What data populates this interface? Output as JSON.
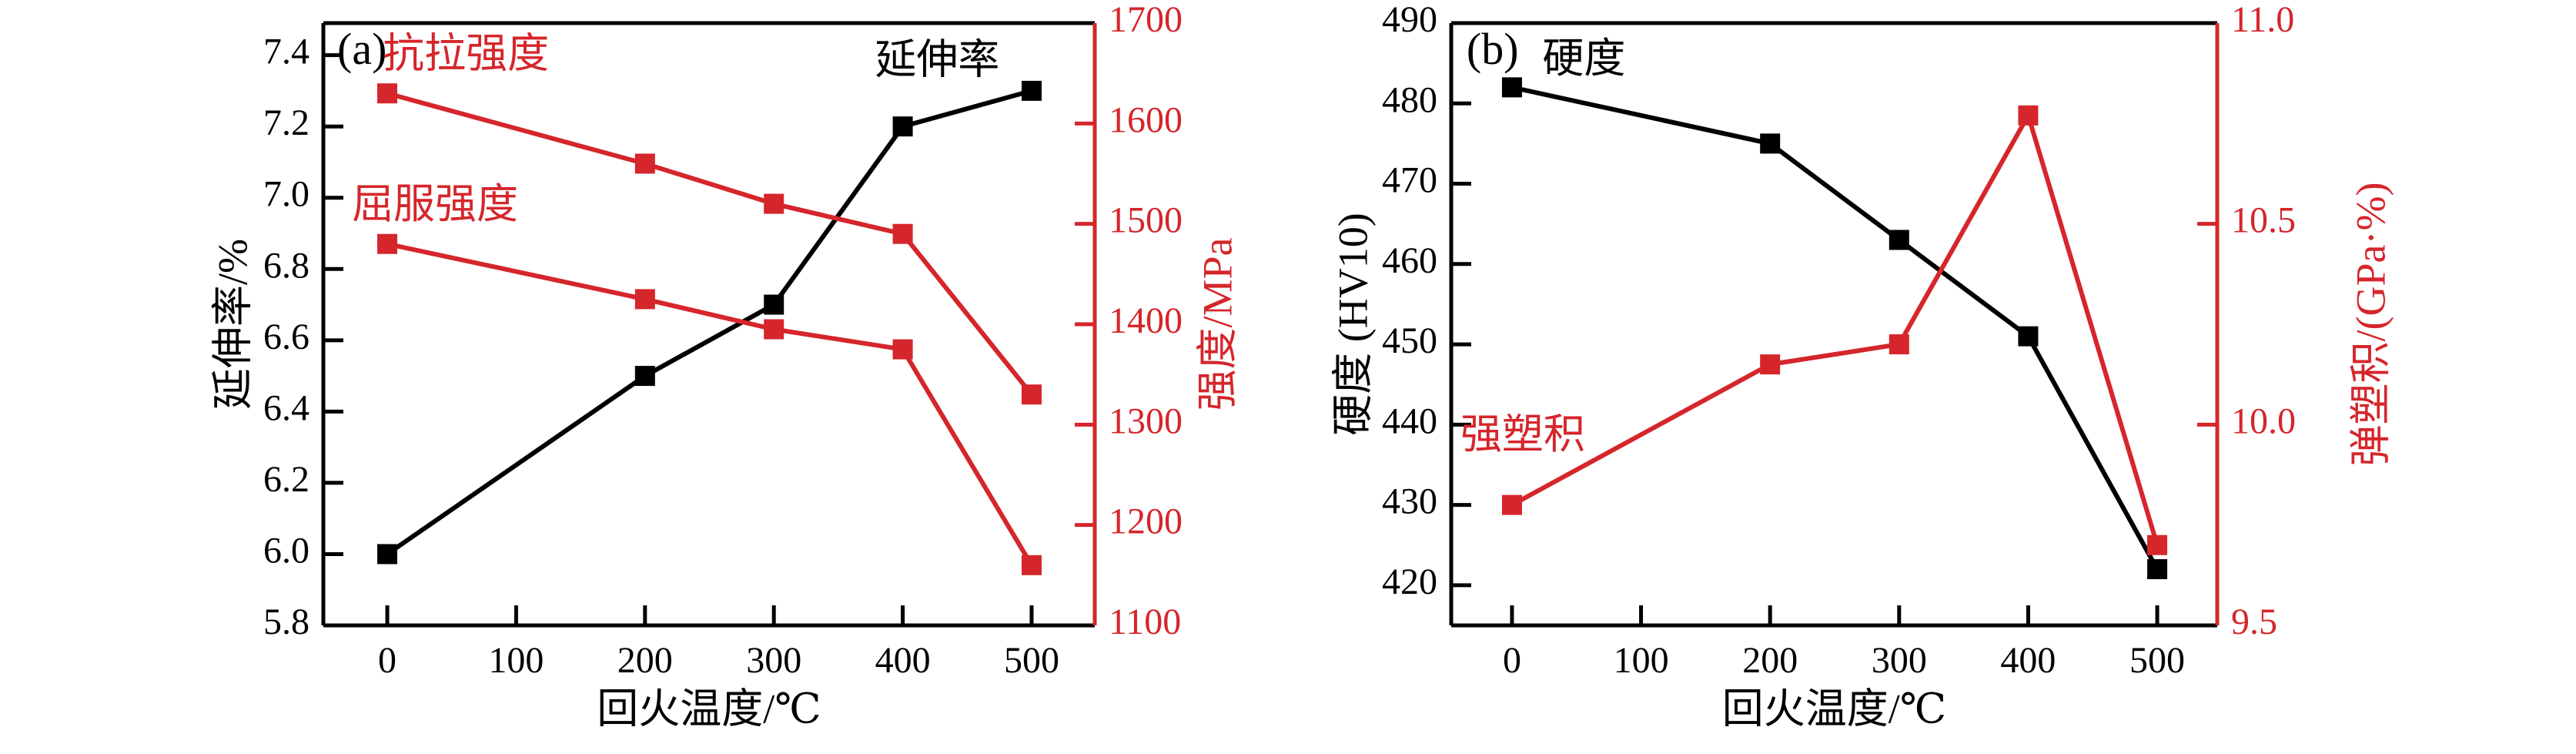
{
  "figure": {
    "background": "#ffffff",
    "description_colors": {
      "black": "#000000",
      "red": "#d5262b"
    }
  },
  "chart_data": [
    {
      "id": "panel-a",
      "type": "line",
      "panel_label": "(a)",
      "xlabel": "回火温度/℃",
      "x_ticks": [
        "0",
        "100",
        "200",
        "300",
        "400",
        "500"
      ],
      "grid": "off",
      "legend_position": "in-plot-text-labels",
      "left_axis": {
        "label": "延伸率/%",
        "ticks": [
          "5.8",
          "6.0",
          "6.2",
          "6.4",
          "6.6",
          "6.8",
          "7.0",
          "7.2",
          "7.4"
        ],
        "ylim": [
          5.8,
          7.49
        ],
        "color": "#000000"
      },
      "right_axis": {
        "label": "强度/MPa",
        "ticks": [
          "1100",
          "1200",
          "1300",
          "1400",
          "1500",
          "1600",
          "1700"
        ],
        "ylim": [
          1100,
          1700
        ],
        "color": "#d5262b"
      },
      "series": [
        {
          "id": "elongation",
          "name": "延伸率",
          "axis": "left",
          "color": "#000000",
          "x": [
            0,
            200,
            300,
            400,
            500
          ],
          "values": [
            6.0,
            6.5,
            6.7,
            7.2,
            7.3
          ]
        },
        {
          "id": "tensile-strength",
          "name": "抗拉强度",
          "axis": "right",
          "color": "#d5262b",
          "x": [
            0,
            200,
            300,
            400,
            500
          ],
          "values": [
            1630,
            1560,
            1520,
            1490,
            1330
          ]
        },
        {
          "id": "yield-strength",
          "name": "屈服强度",
          "axis": "right",
          "color": "#d5262b",
          "x": [
            0,
            200,
            300,
            400,
            500
          ],
          "values": [
            1480,
            1425,
            1395,
            1375,
            1160
          ]
        }
      ],
      "annotations": [
        {
          "id": "panel-a-label",
          "text": "(a)",
          "fx": 0.018,
          "fy": 0.051,
          "color": "#000000",
          "size": 58
        },
        {
          "id": "tensile-strength-label",
          "text": "抗拉强度",
          "fx": 0.077,
          "fy": 0.058,
          "color": "#d5262b",
          "size": 54
        },
        {
          "id": "yield-strength-label",
          "text": "屈服强度",
          "fx": 0.037,
          "fy": 0.308,
          "color": "#d5262b",
          "size": 54
        },
        {
          "id": "elongation-label",
          "text": "延伸率",
          "fx": 0.715,
          "fy": 0.068,
          "color": "#000000",
          "size": 54
        }
      ]
    },
    {
      "id": "panel-b",
      "type": "line",
      "panel_label": "(b)",
      "xlabel": "回火温度/℃",
      "x_ticks": [
        "0",
        "100",
        "200",
        "300",
        "400",
        "500"
      ],
      "grid": "off",
      "legend_position": "in-plot-text-labels",
      "left_axis": {
        "label": "硬度 (HV10)",
        "ticks": [
          "420",
          "430",
          "440",
          "450",
          "460",
          "470",
          "480",
          "490"
        ],
        "ylim": [
          415,
          490
        ],
        "color": "#000000"
      },
      "right_axis": {
        "label": "弹塑积/(GPa·%)",
        "ticks": [
          "9.5",
          "10.0",
          "10.5",
          "11.0"
        ],
        "ylim": [
          9.5,
          11.0
        ],
        "color": "#d5262b"
      },
      "series": [
        {
          "id": "hardness",
          "name": "硬度",
          "axis": "left",
          "color": "#000000",
          "x": [
            0,
            200,
            300,
            400,
            500
          ],
          "values": [
            482,
            475,
            463,
            451,
            422
          ]
        },
        {
          "id": "strength-ductility-product",
          "name": "强塑积",
          "axis": "right",
          "color": "#d5262b",
          "x": [
            0,
            200,
            300,
            400,
            500
          ],
          "values": [
            9.8,
            10.15,
            10.2,
            10.77,
            9.7
          ]
        }
      ],
      "annotations": [
        {
          "id": "panel-b-label",
          "text": "(b)",
          "fx": 0.02,
          "fy": 0.051,
          "color": "#000000",
          "size": 58
        },
        {
          "id": "hardness-label",
          "text": "硬度",
          "fx": 0.119,
          "fy": 0.066,
          "color": "#000000",
          "size": 54
        },
        {
          "id": "strength-ductility-product-label",
          "text": "强塑积",
          "fx": 0.012,
          "fy": 0.69,
          "color": "#d5262b",
          "size": 54
        }
      ]
    }
  ]
}
